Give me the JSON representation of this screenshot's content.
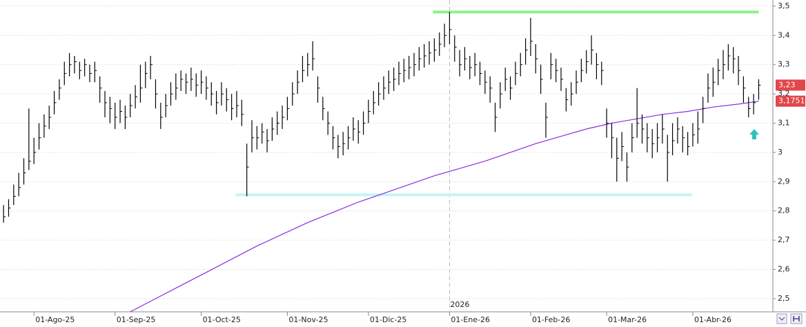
{
  "chart_data": {
    "type": "ohlc",
    "ylim": [
      2.455,
      3.521
    ],
    "yticks": [
      {
        "value": 2.5,
        "label": "2,5"
      },
      {
        "value": 2.6,
        "label": "2,6"
      },
      {
        "value": 2.7,
        "label": "2,7"
      },
      {
        "value": 2.8,
        "label": "2,8"
      },
      {
        "value": 2.9,
        "label": "2,9"
      },
      3,
      {
        "value": 3.1,
        "label": "3,1"
      },
      {
        "value": 3.2,
        "label": "3,2"
      },
      {
        "value": 3.3,
        "label": "3,3"
      },
      {
        "value": 3.4,
        "label": "3,4"
      },
      {
        "value": 3.5,
        "label": "3,5"
      }
    ],
    "xlim": [
      -0.7,
      151.8
    ],
    "xticks": [
      {
        "value": 6,
        "label": "01-Ago-25"
      },
      {
        "value": 22,
        "label": "01-Sep-25"
      },
      {
        "value": 39,
        "label": "01-Oct-25"
      },
      {
        "value": 56,
        "label": "01-Nov-25"
      },
      {
        "value": 72,
        "label": "01-Dic-25"
      },
      {
        "value": 88,
        "label": "01-Ene-26"
      },
      {
        "value": 104,
        "label": "01-Feb-26"
      },
      {
        "value": 119,
        "label": "01-Mar-26"
      },
      {
        "value": 136,
        "label": "01-Abr-26"
      }
    ],
    "grid": true,
    "color": "#000000",
    "high": [
      2.82,
      2.84,
      2.89,
      2.93,
      2.98,
      3.15,
      3.05,
      3.1,
      3.13,
      3.16,
      3.21,
      3.25,
      3.31,
      3.34,
      3.33,
      3.31,
      3.32,
      3.3,
      3.31,
      3.26,
      3.21,
      3.19,
      3.17,
      3.18,
      3.16,
      3.2,
      3.23,
      3.3,
      3.31,
      3.33,
      3.25,
      3.17,
      3.2,
      3.24,
      3.27,
      3.28,
      3.27,
      3.29,
      3.27,
      3.28,
      3.26,
      3.24,
      3.21,
      3.24,
      3.22,
      3.2,
      3.21,
      3.18,
      3.03,
      3.11,
      3.09,
      3.1,
      3.08,
      3.12,
      3.14,
      3.16,
      3.19,
      3.24,
      3.28,
      3.33,
      3.34,
      3.38,
      3.26,
      3.19,
      3.14,
      3.09,
      3.06,
      3.07,
      3.09,
      3.12,
      3.11,
      3.14,
      3.18,
      3.21,
      3.24,
      3.26,
      3.28,
      3.29,
      3.31,
      3.32,
      3.33,
      3.34,
      3.36,
      3.37,
      3.38,
      3.39,
      3.41,
      3.44,
      3.48,
      3.4,
      3.35,
      3.36,
      3.33,
      3.34,
      3.31,
      3.28,
      3.26,
      3.17,
      3.24,
      3.29,
      3.26,
      3.31,
      3.34,
      3.39,
      3.46,
      3.37,
      3.3,
      3.17,
      3.34,
      3.32,
      3.29,
      3.22,
      3.24,
      3.28,
      3.32,
      3.35,
      3.4,
      3.34,
      3.31,
      3.15,
      3.1,
      3.05,
      3.07,
      3.0,
      3.1,
      3.22,
      3.13,
      3.1,
      3.08,
      3.1,
      3.13,
      3.06,
      3.1,
      3.12,
      3.09,
      3.07,
      3.1,
      3.14,
      3.19,
      3.27,
      3.29,
      3.32,
      3.35,
      3.37,
      3.36,
      3.33,
      3.26,
      3.19,
      3.2,
      3.25
    ],
    "low": [
      2.76,
      2.78,
      2.82,
      2.85,
      2.89,
      2.94,
      2.96,
      3.01,
      3.05,
      3.08,
      3.13,
      3.18,
      3.23,
      3.26,
      3.27,
      3.25,
      3.26,
      3.24,
      3.24,
      3.17,
      3.12,
      3.1,
      3.08,
      3.1,
      3.08,
      3.12,
      3.15,
      3.17,
      3.22,
      3.25,
      3.15,
      3.08,
      3.12,
      3.16,
      3.18,
      3.21,
      3.2,
      3.21,
      3.19,
      3.2,
      3.18,
      3.16,
      3.13,
      3.16,
      3.14,
      3.11,
      3.12,
      3.09,
      2.85,
      3.0,
      3.01,
      3.03,
      3.0,
      3.04,
      3.06,
      3.08,
      3.11,
      3.16,
      3.2,
      3.24,
      3.26,
      3.28,
      3.17,
      3.11,
      3.06,
      3.01,
      2.98,
      2.99,
      3.01,
      3.04,
      3.03,
      3.06,
      3.1,
      3.13,
      3.16,
      3.18,
      3.2,
      3.21,
      3.23,
      3.24,
      3.25,
      3.26,
      3.28,
      3.29,
      3.3,
      3.31,
      3.33,
      3.36,
      3.37,
      3.31,
      3.26,
      3.28,
      3.25,
      3.26,
      3.23,
      3.2,
      3.17,
      3.07,
      3.15,
      3.21,
      3.18,
      3.23,
      3.26,
      3.3,
      3.33,
      3.27,
      3.2,
      3.05,
      3.25,
      3.24,
      3.21,
      3.14,
      3.16,
      3.2,
      3.24,
      3.27,
      3.3,
      3.25,
      3.23,
      3.05,
      2.98,
      2.9,
      2.97,
      2.9,
      3.0,
      3.05,
      3.03,
      3.0,
      2.98,
      3.0,
      3.03,
      2.9,
      2.99,
      3.03,
      3.0,
      2.99,
      3.02,
      3.03,
      3.1,
      3.17,
      3.19,
      3.23,
      3.25,
      3.28,
      3.27,
      3.23,
      3.17,
      3.12,
      3.13,
      3.18
    ],
    "close": [
      2.78,
      2.81,
      2.85,
      2.88,
      2.93,
      2.97,
      3.0,
      3.05,
      3.09,
      3.12,
      3.17,
      3.22,
      3.27,
      3.3,
      3.31,
      3.28,
      3.3,
      3.27,
      3.28,
      3.22,
      3.17,
      3.15,
      3.12,
      3.14,
      3.12,
      3.16,
      3.19,
      3.22,
      3.27,
      3.3,
      3.2,
      3.12,
      3.16,
      3.2,
      3.22,
      3.25,
      3.24,
      3.25,
      3.23,
      3.24,
      3.22,
      3.2,
      3.17,
      3.2,
      3.18,
      3.15,
      3.16,
      3.13,
      2.95,
      3.05,
      3.05,
      3.07,
      3.04,
      3.08,
      3.1,
      3.12,
      3.15,
      3.2,
      3.24,
      3.28,
      3.3,
      3.32,
      3.22,
      3.15,
      3.1,
      3.05,
      3.02,
      3.03,
      3.05,
      3.08,
      3.07,
      3.1,
      3.14,
      3.17,
      3.2,
      3.22,
      3.24,
      3.25,
      3.27,
      3.28,
      3.29,
      3.3,
      3.32,
      3.33,
      3.34,
      3.35,
      3.37,
      3.4,
      3.42,
      3.36,
      3.3,
      3.32,
      3.29,
      3.3,
      3.27,
      3.24,
      3.22,
      3.12,
      3.2,
      3.25,
      3.22,
      3.27,
      3.3,
      3.35,
      3.38,
      3.32,
      3.25,
      3.12,
      3.3,
      3.28,
      3.25,
      3.18,
      3.2,
      3.24,
      3.28,
      3.31,
      3.35,
      3.3,
      3.28,
      3.1,
      3.05,
      2.98,
      3.02,
      2.95,
      3.05,
      3.1,
      3.08,
      3.05,
      3.03,
      3.05,
      3.08,
      3.0,
      3.04,
      3.08,
      3.05,
      3.02,
      3.06,
      3.08,
      3.15,
      3.22,
      3.24,
      3.28,
      3.3,
      3.33,
      3.32,
      3.28,
      3.22,
      3.15,
      3.17,
      3.23
    ],
    "last_price": {
      "value": 3.23,
      "label": "3,23",
      "color": "#e0474c"
    },
    "moving_average": {
      "color": "#8a2be2",
      "x": [
        25,
        30,
        35,
        40,
        45,
        50,
        55,
        60,
        65,
        70,
        75,
        80,
        85,
        90,
        95,
        100,
        105,
        110,
        115,
        120,
        125,
        130,
        135,
        140,
        145,
        149
      ],
      "values": [
        2.455,
        2.5,
        2.545,
        2.59,
        2.635,
        2.68,
        2.72,
        2.76,
        2.795,
        2.83,
        2.86,
        2.89,
        2.92,
        2.945,
        2.97,
        3.0,
        3.03,
        3.055,
        3.08,
        3.1,
        3.115,
        3.13,
        3.14,
        3.155,
        3.165,
        3.1751
      ],
      "last_label": "3,1751",
      "label_color": "#e0474c"
    },
    "hlines": [
      {
        "value": 3.48,
        "from": 84.7,
        "to": 149,
        "color": "#8ef08a"
      },
      {
        "value": 2.855,
        "from": 45.8,
        "to": 135.8,
        "color": "#c4f4f4"
      }
    ],
    "annotations": [
      {
        "text": "2026",
        "x": 88
      }
    ]
  }
}
